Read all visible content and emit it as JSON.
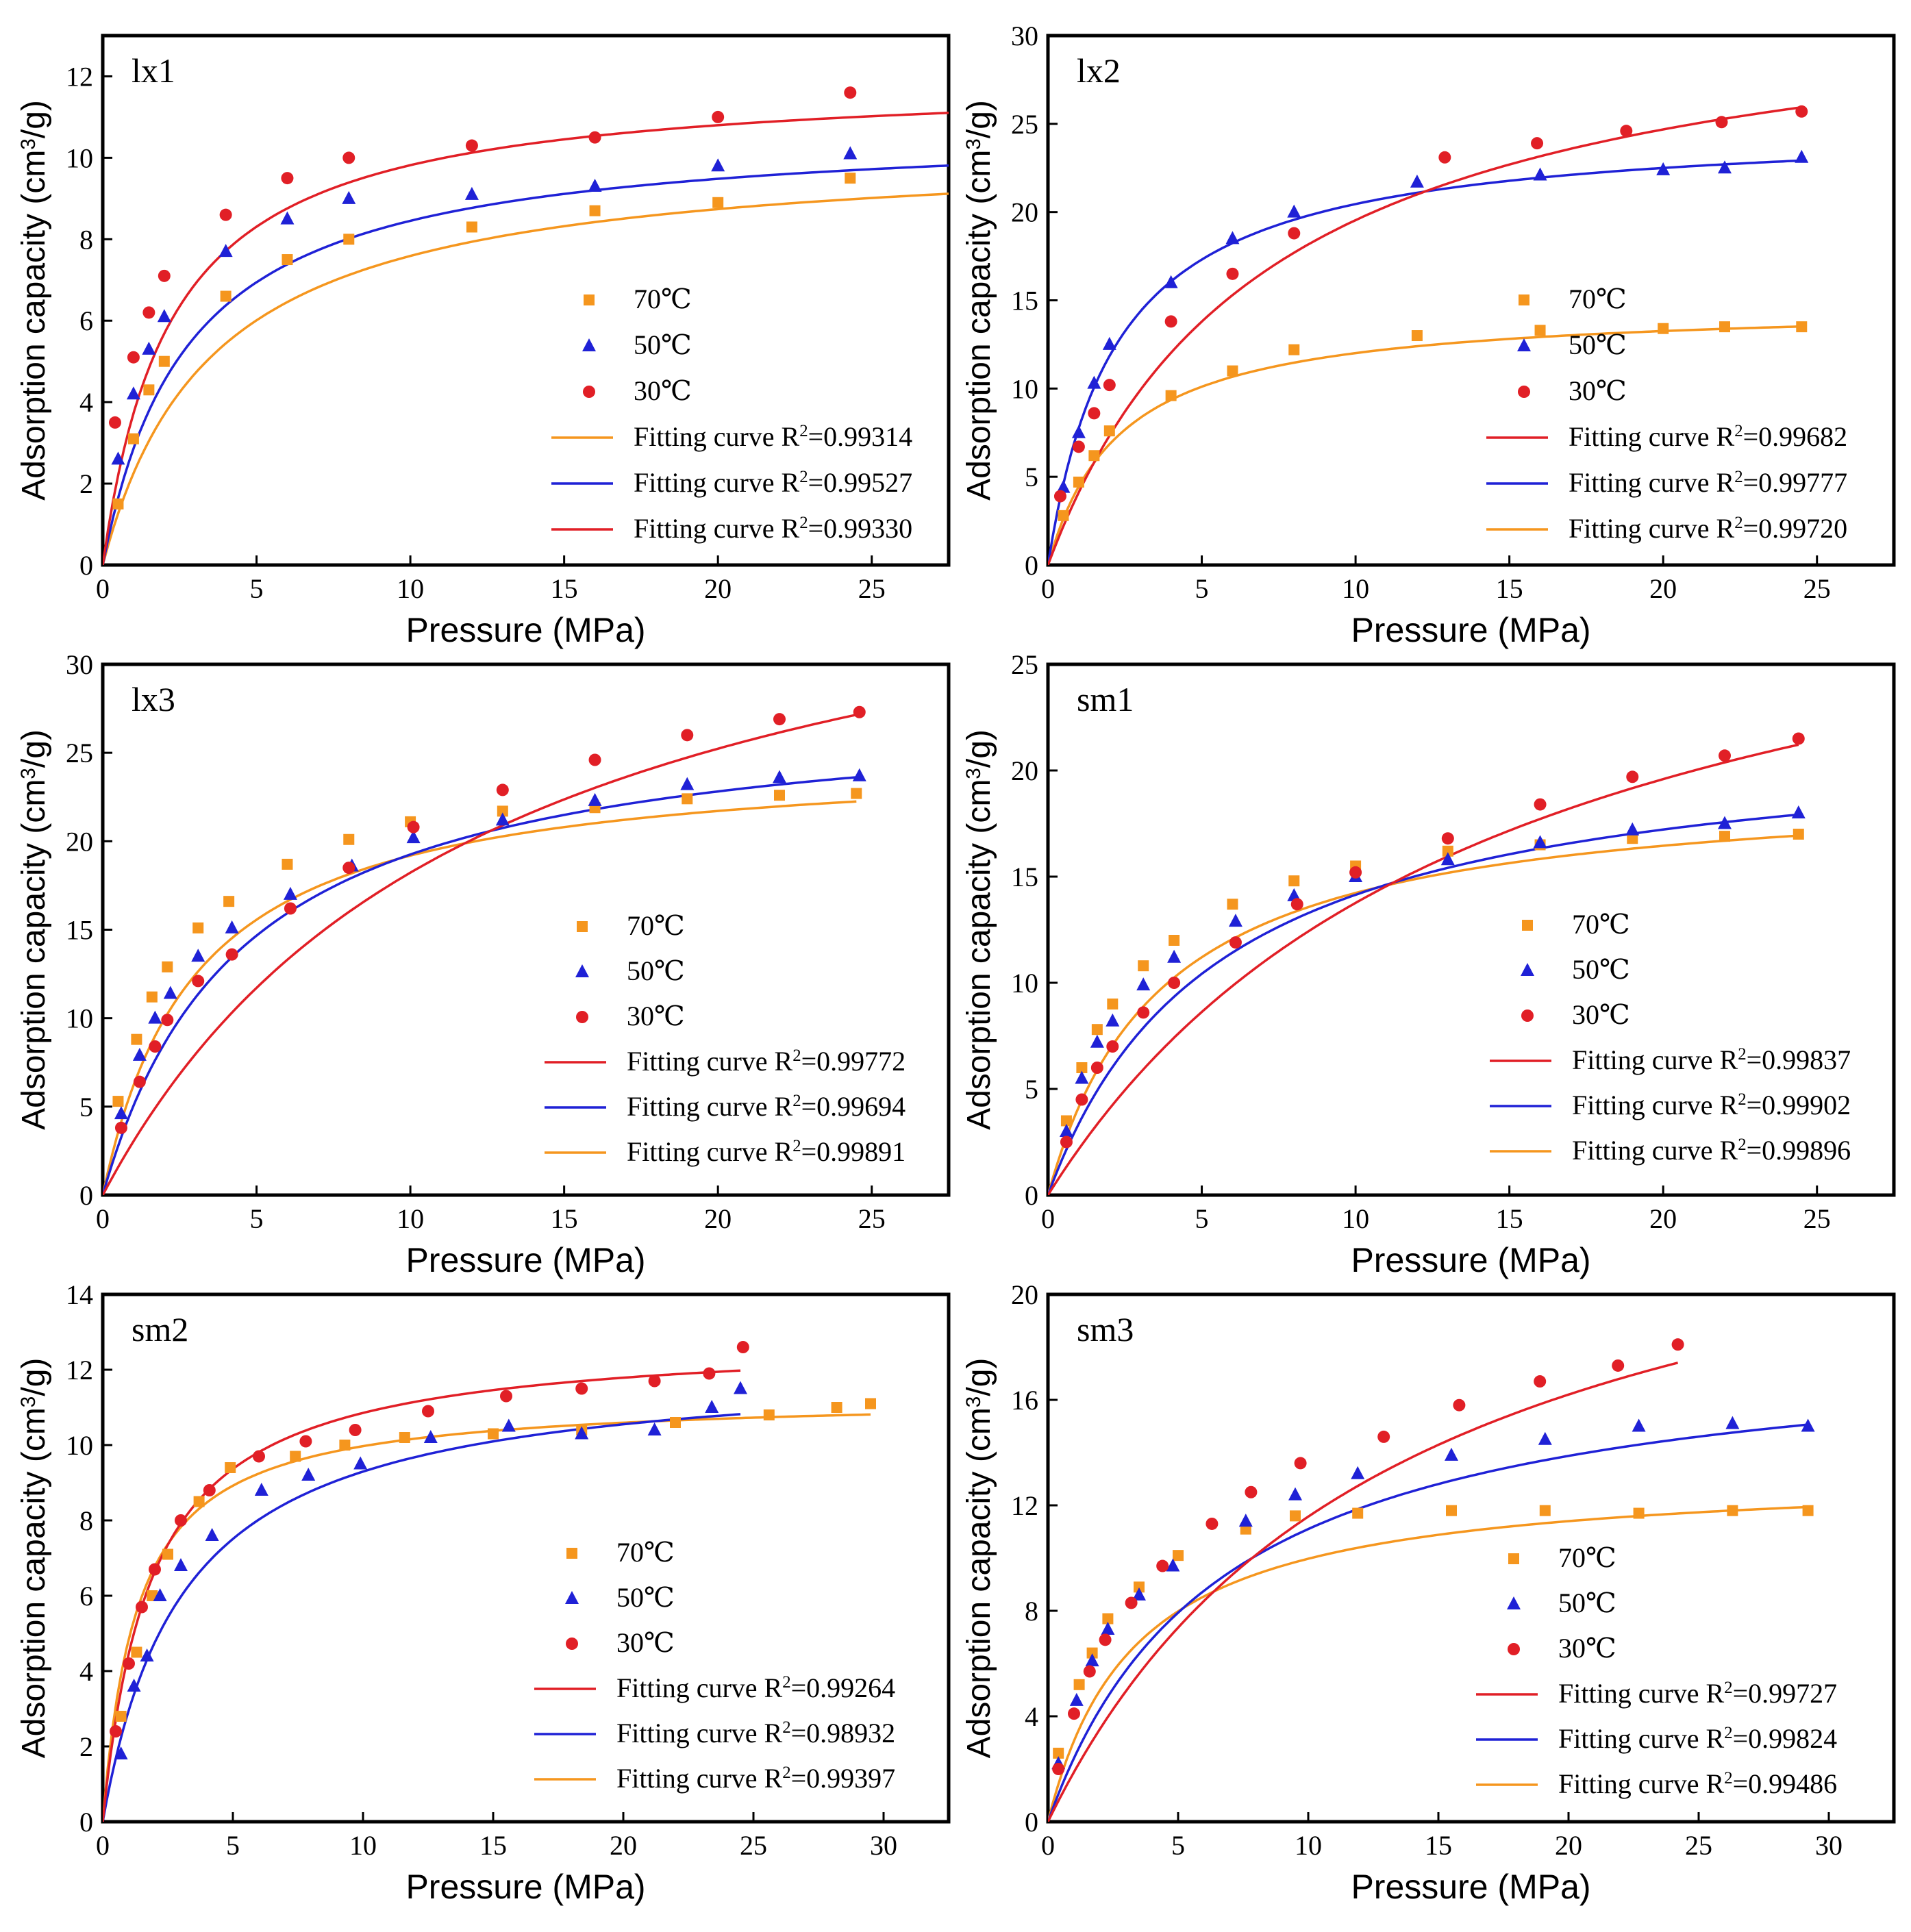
{
  "colors": {
    "c70": "#f5961e",
    "c50": "#1f21d6",
    "c30": "#e11f26",
    "frame": "#000000"
  },
  "legend_markers": [
    "square",
    "triangle",
    "circle"
  ],
  "chart_data": [
    {
      "type": "scatter",
      "title": "lx1",
      "xlabel": "Pressure (MPa)",
      "ylabel": "Adsorption capacity (cm³/g)",
      "xlim": [
        0,
        27.5
      ],
      "ylim": [
        0,
        13
      ],
      "xticks": [
        0,
        5,
        10,
        15,
        20,
        25
      ],
      "yticks": [
        0,
        2,
        4,
        6,
        8,
        10,
        12
      ],
      "legend": [
        "70℃",
        "50℃",
        "30℃",
        "Fitting curve  R²=0.99314",
        "Fitting curve  R²=0.99527",
        "Fitting curve  R²=0.99330"
      ],
      "legend_order": [
        "c70",
        "c50",
        "c30",
        "c70",
        "c50",
        "c30"
      ],
      "series": [
        {
          "name": "70℃",
          "color": "c70",
          "marker": "square",
          "x": [
            0.5,
            1,
            1.5,
            2,
            4,
            6,
            8,
            12,
            16,
            20,
            24.3
          ],
          "y": [
            1.5,
            3.1,
            4.3,
            5.0,
            6.6,
            7.5,
            8.0,
            8.3,
            8.7,
            8.9,
            9.5
          ],
          "fit": [
            10.3,
            0.28,
            27.5
          ]
        },
        {
          "name": "50℃",
          "color": "c50",
          "marker": "triangle",
          "x": [
            0.5,
            1,
            1.5,
            2,
            4,
            6,
            8,
            12,
            16,
            20,
            24.3
          ],
          "y": [
            2.6,
            4.2,
            5.3,
            6.1,
            7.7,
            8.5,
            9.0,
            9.1,
            9.3,
            9.8,
            10.1
          ],
          "fit": [
            10.8,
            0.36,
            27.5
          ]
        },
        {
          "name": "30℃",
          "color": "c30",
          "marker": "circle",
          "x": [
            0.4,
            1,
            1.5,
            2,
            4,
            6,
            8,
            12,
            16,
            20,
            24.3
          ],
          "y": [
            3.5,
            5.1,
            6.2,
            7.1,
            8.6,
            9.5,
            10.0,
            10.3,
            10.5,
            11.0,
            11.6
          ],
          "fit": [
            12.0,
            0.45,
            27.5
          ]
        }
      ]
    },
    {
      "type": "scatter",
      "title": "lx2",
      "xlabel": "Pressure (MPa)",
      "ylabel": "Adsorption capacity (cm³/g)",
      "xlim": [
        0,
        27.5
      ],
      "ylim": [
        0,
        30
      ],
      "xticks": [
        0,
        5,
        10,
        15,
        20,
        25
      ],
      "yticks": [
        0,
        5,
        10,
        15,
        20,
        25,
        30
      ],
      "legend": [
        "70℃",
        "50℃",
        "30℃",
        "Fitting curve  R²=0.99682",
        "Fitting curve  R²=0.99777",
        "Fitting curve  R²=0.99720"
      ],
      "legend_order": [
        "c70",
        "c50",
        "c30",
        "c30",
        "c50",
        "c70"
      ],
      "series": [
        {
          "name": "70℃",
          "color": "c70",
          "marker": "square",
          "x": [
            0.5,
            1,
            1.5,
            2,
            4,
            6,
            8,
            12,
            16,
            20,
            22,
            24.5
          ],
          "y": [
            2.8,
            4.7,
            6.2,
            7.6,
            9.6,
            11.0,
            12.2,
            13.0,
            13.3,
            13.4,
            13.5,
            13.5
          ],
          "fit": [
            14.8,
            0.43,
            24.5
          ]
        },
        {
          "name": "50℃",
          "color": "c50",
          "marker": "triangle",
          "x": [
            0.5,
            1,
            1.5,
            2,
            4,
            6,
            8,
            12,
            16,
            20,
            22,
            24.5
          ],
          "y": [
            4.4,
            7.5,
            10.3,
            12.5,
            16.0,
            18.5,
            20.0,
            21.7,
            22.1,
            22.4,
            22.5,
            23.1
          ],
          "fit": [
            25.0,
            0.45,
            24.5
          ]
        },
        {
          "name": "30℃",
          "color": "c30",
          "marker": "circle",
          "x": [
            0.4,
            1,
            1.5,
            2,
            4,
            6,
            8,
            12.9,
            15.9,
            18.8,
            21.9,
            24.5
          ],
          "y": [
            3.9,
            6.7,
            8.6,
            10.2,
            13.8,
            16.5,
            18.8,
            23.1,
            23.9,
            24.6,
            25.1,
            25.7
          ],
          "fit": [
            33.5,
            0.14,
            24.5
          ]
        }
      ]
    },
    {
      "type": "scatter",
      "title": "lx3",
      "xlabel": "Pressure (MPa)",
      "ylabel": "Adsorption capacity (cm³/g)",
      "xlim": [
        0,
        27.5
      ],
      "ylim": [
        0,
        30
      ],
      "xticks": [
        0,
        5,
        10,
        15,
        20,
        25
      ],
      "yticks": [
        0,
        5,
        10,
        15,
        20,
        25,
        30
      ],
      "legend": [
        "70℃",
        "50℃",
        "30℃",
        "Fitting curve  R²=0.99772",
        "Fitting curve  R²=0.99694",
        "Fitting curve  R²=0.99891"
      ],
      "legend_order": [
        "c70",
        "c50",
        "c30",
        "c30",
        "c50",
        "c70"
      ],
      "series": [
        {
          "name": "70℃",
          "color": "c70",
          "marker": "square",
          "x": [
            0.5,
            1.1,
            1.6,
            2.1,
            3.1,
            4.1,
            6.0,
            8.0,
            10.0,
            13.0,
            16.0,
            19.0,
            22.0,
            24.5
          ],
          "y": [
            5.3,
            8.8,
            11.2,
            12.9,
            15.1,
            16.6,
            18.7,
            20.1,
            21.1,
            21.7,
            21.9,
            22.4,
            22.6,
            22.7
          ],
          "fit": [
            25.0,
            0.33,
            24.5
          ]
        },
        {
          "name": "50℃",
          "color": "c50",
          "marker": "triangle",
          "x": [
            0.6,
            1.2,
            1.7,
            2.2,
            3.1,
            4.2,
            6.1,
            8.1,
            10.1,
            13.0,
            16.0,
            19.0,
            22.0,
            24.6
          ],
          "y": [
            4.6,
            7.9,
            10.0,
            11.4,
            13.5,
            15.1,
            17.0,
            18.6,
            20.2,
            21.2,
            22.3,
            23.2,
            23.6,
            23.7
          ],
          "fit": [
            28.0,
            0.22,
            24.6
          ]
        },
        {
          "name": "30℃",
          "color": "c30",
          "marker": "circle",
          "x": [
            0.6,
            1.2,
            1.7,
            2.1,
            3.1,
            4.2,
            6.1,
            8.0,
            10.1,
            13.0,
            16.0,
            19.0,
            22.0,
            24.6
          ],
          "y": [
            3.8,
            6.4,
            8.4,
            9.9,
            12.1,
            13.6,
            16.2,
            18.5,
            20.8,
            22.9,
            24.6,
            26.0,
            26.9,
            27.3
          ],
          "fit": [
            41.0,
            0.08,
            24.6
          ]
        }
      ]
    },
    {
      "type": "scatter",
      "title": "sm1",
      "xlabel": "Pressure (MPa)",
      "ylabel": "Adsorption capacity (cm³/g)",
      "xlim": [
        0,
        27.5
      ],
      "ylim": [
        0,
        25
      ],
      "xticks": [
        0,
        5,
        10,
        15,
        20,
        25
      ],
      "yticks": [
        0,
        5,
        10,
        15,
        20,
        25
      ],
      "legend": [
        "70℃",
        "50℃",
        "30℃",
        "Fitting curve  R²=0.99837",
        "Fitting curve  R²=0.99902",
        "Fitting curve  R²=0.99896"
      ],
      "legend_order": [
        "c70",
        "c50",
        "c30",
        "c30",
        "c50",
        "c70"
      ],
      "series": [
        {
          "name": "70℃",
          "color": "c70",
          "marker": "square",
          "x": [
            0.6,
            1.1,
            1.6,
            2.1,
            3.1,
            4.1,
            6.0,
            8.0,
            10.0,
            13.0,
            16.0,
            19.0,
            22.0,
            24.4
          ],
          "y": [
            3.5,
            6.0,
            7.8,
            9.0,
            10.8,
            12.0,
            13.7,
            14.8,
            15.5,
            16.2,
            16.5,
            16.8,
            16.9,
            17.0
          ],
          "fit": [
            19.5,
            0.27,
            24.4
          ]
        },
        {
          "name": "50℃",
          "color": "c50",
          "marker": "triangle",
          "x": [
            0.6,
            1.1,
            1.6,
            2.1,
            3.1,
            4.1,
            6.1,
            8.0,
            10.0,
            13.0,
            16.0,
            19.0,
            22.0,
            24.4
          ],
          "y": [
            3.0,
            5.5,
            7.2,
            8.2,
            9.9,
            11.2,
            12.9,
            14.1,
            15.0,
            15.8,
            16.6,
            17.2,
            17.5,
            18.0
          ],
          "fit": [
            22.0,
            0.18,
            24.4
          ]
        },
        {
          "name": "30℃",
          "color": "c30",
          "marker": "circle",
          "x": [
            0.6,
            1.1,
            1.6,
            2.1,
            3.1,
            4.1,
            6.1,
            8.1,
            10.0,
            13.0,
            16.0,
            19.0,
            22.0,
            24.4
          ],
          "y": [
            2.5,
            4.5,
            6.0,
            7.0,
            8.6,
            10.0,
            11.9,
            13.7,
            15.2,
            16.8,
            18.4,
            19.7,
            20.7,
            21.5
          ],
          "fit": [
            34.0,
            0.068,
            24.4
          ]
        }
      ]
    },
    {
      "type": "scatter",
      "title": "sm2",
      "xlabel": "Pressure (MPa)",
      "ylabel": "Adsorption capacity (cm³/g)",
      "xlim": [
        0,
        32.5
      ],
      "ylim": [
        0,
        14
      ],
      "xticks": [
        0,
        5,
        10,
        15,
        20,
        25,
        30
      ],
      "yticks": [
        0,
        2,
        4,
        6,
        8,
        10,
        12,
        14
      ],
      "legend": [
        "70℃",
        "50℃",
        "30℃",
        "Fitting curve  R²=0.99264",
        "Fitting curve  R²=0.98932",
        "Fitting curve  R²=0.99397"
      ],
      "legend_order": [
        "c70",
        "c50",
        "c30",
        "c30",
        "c50",
        "c70"
      ],
      "series": [
        {
          "name": "70℃",
          "color": "c70",
          "marker": "square",
          "x": [
            0.7,
            1.3,
            1.9,
            2.5,
            3.7,
            4.9,
            7.4,
            9.3,
            11.6,
            15.0,
            18.4,
            22.0,
            25.6,
            28.2,
            29.5
          ],
          "y": [
            2.8,
            4.5,
            6.0,
            7.1,
            8.5,
            9.4,
            9.7,
            10.0,
            10.2,
            10.3,
            10.4,
            10.6,
            10.8,
            11.0,
            11.1
          ],
          "fit": [
            11.3,
            0.75,
            29.5
          ]
        },
        {
          "name": "50℃",
          "color": "c50",
          "marker": "triangle",
          "x": [
            0.7,
            1.2,
            1.7,
            2.2,
            3.0,
            4.2,
            6.1,
            7.9,
            9.9,
            12.6,
            15.6,
            18.4,
            21.2,
            23.4,
            24.5
          ],
          "y": [
            1.8,
            3.6,
            4.4,
            6.0,
            6.8,
            7.6,
            8.8,
            9.2,
            9.5,
            10.2,
            10.5,
            10.3,
            10.4,
            11.0,
            11.5
          ],
          "fit": [
            12.2,
            0.32,
            24.5
          ]
        },
        {
          "name": "30℃",
          "color": "c30",
          "marker": "circle",
          "x": [
            0.5,
            1.0,
            1.5,
            2.0,
            3.0,
            4.1,
            6.0,
            7.8,
            9.7,
            12.5,
            15.5,
            18.4,
            21.2,
            23.3,
            24.6
          ],
          "y": [
            2.4,
            4.2,
            5.7,
            6.7,
            8.0,
            8.8,
            9.7,
            10.1,
            10.4,
            10.9,
            11.3,
            11.5,
            11.7,
            11.9,
            12.6
          ],
          "fit": [
            12.9,
            0.53,
            24.5
          ]
        }
      ]
    },
    {
      "type": "scatter",
      "title": "sm3",
      "xlabel": "Pressure (MPa)",
      "ylabel": "Adsorption capacity (cm³/g)",
      "xlim": [
        0,
        32.5
      ],
      "ylim": [
        0,
        20
      ],
      "xticks": [
        0,
        5,
        10,
        15,
        20,
        25,
        30
      ],
      "yticks": [
        0,
        4,
        8,
        12,
        16,
        20
      ],
      "legend": [
        "70℃",
        "50℃",
        "30℃",
        "Fitting curve  R²=0.99727",
        "Fitting curve  R²=0.99824",
        "Fitting curve  R²=0.99486"
      ],
      "legend_order": [
        "c70",
        "c50",
        "c30",
        "c30",
        "c50",
        "c70"
      ],
      "series": [
        {
          "name": "70℃",
          "color": "c70",
          "marker": "square",
          "x": [
            0.4,
            1.2,
            1.7,
            2.3,
            3.5,
            5.0,
            7.6,
            9.5,
            11.9,
            15.5,
            19.1,
            22.7,
            26.3,
            29.2
          ],
          "y": [
            2.6,
            5.2,
            6.4,
            7.7,
            8.9,
            10.1,
            11.1,
            11.6,
            11.7,
            11.8,
            11.8,
            11.7,
            11.8,
            11.8
          ],
          "fit": [
            13.3,
            0.3,
            29.2
          ]
        },
        {
          "name": "50℃",
          "color": "c50",
          "marker": "triangle",
          "x": [
            0.4,
            1.1,
            1.7,
            2.3,
            3.5,
            4.8,
            7.6,
            9.5,
            11.9,
            15.5,
            19.1,
            22.7,
            26.3,
            29.2
          ],
          "y": [
            2.2,
            4.6,
            6.1,
            7.3,
            8.6,
            9.7,
            11.4,
            12.4,
            13.2,
            13.9,
            14.5,
            15.0,
            15.1,
            15.0
          ],
          "fit": [
            18.5,
            0.15,
            29.2
          ]
        },
        {
          "name": "30℃",
          "color": "c30",
          "marker": "circle",
          "x": [
            0.4,
            1.0,
            1.6,
            2.2,
            3.2,
            4.4,
            6.3,
            7.8,
            9.7,
            12.9,
            15.8,
            18.9,
            21.9,
            24.2
          ],
          "y": [
            2.0,
            4.1,
            5.7,
            6.9,
            8.3,
            9.7,
            11.3,
            12.5,
            13.6,
            14.6,
            15.8,
            16.7,
            17.3,
            18.1
          ],
          "fit": [
            27.0,
            0.075,
            24.2
          ]
        }
      ]
    }
  ]
}
